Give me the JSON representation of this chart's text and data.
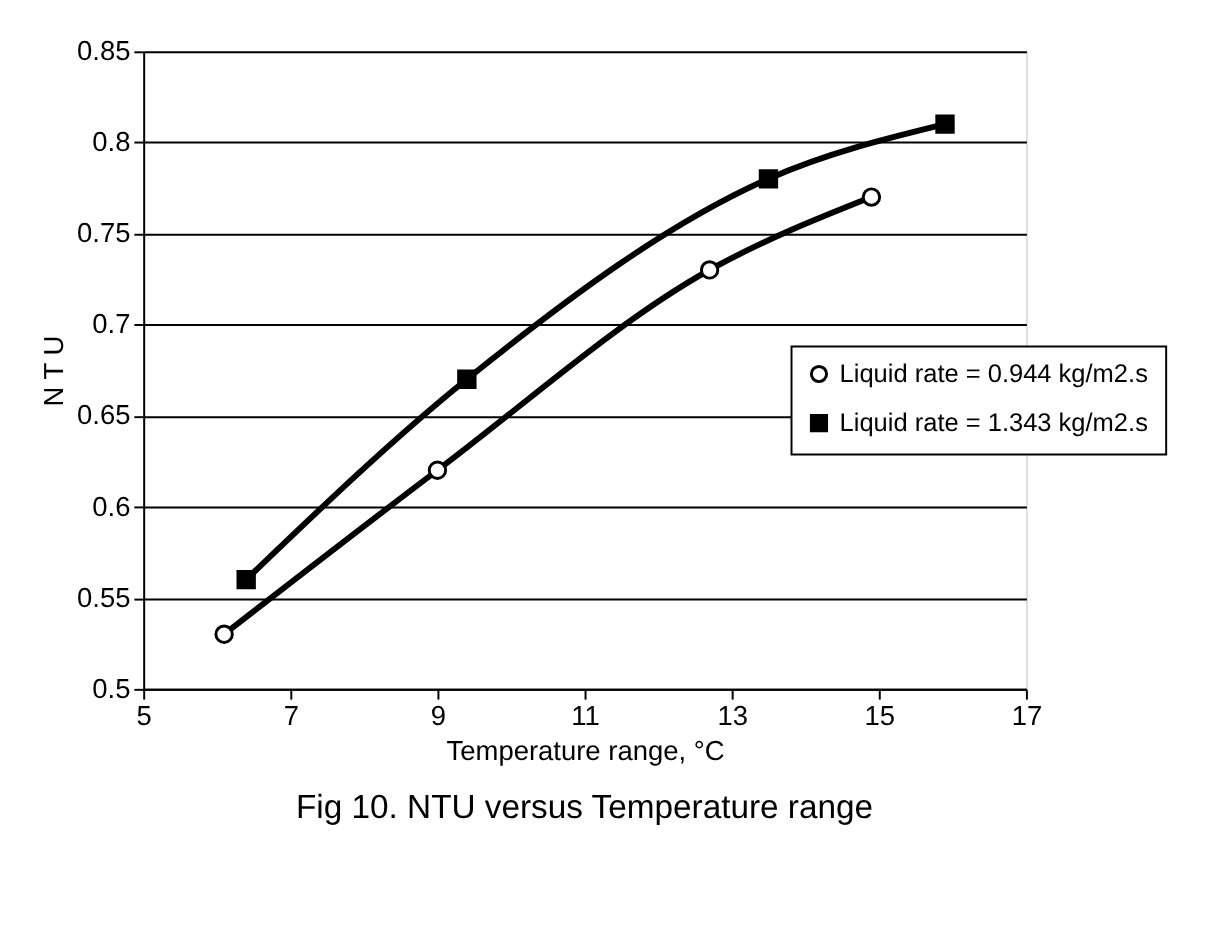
{
  "chart_data": {
    "type": "line",
    "title": "Fig 10. NTU versus Temperature range",
    "xlabel": "Temperature range, °C",
    "ylabel": "N T U",
    "xlim": [
      5,
      17
    ],
    "xticks": [
      5,
      7,
      9,
      11,
      13,
      15,
      17
    ],
    "ylim": [
      0.5,
      0.85
    ],
    "yticks": [
      0.5,
      0.55,
      0.6,
      0.65,
      0.7,
      0.75,
      0.8,
      0.85
    ],
    "grid": "y",
    "legend": "right",
    "line_style": "solid",
    "series": [
      {
        "name": "Liquid rate = 0.944 kg/m2.s",
        "color": "#000000",
        "marker": "circle",
        "x": [
          6.1,
          9.0,
          12.7,
          14.9
        ],
        "values": [
          0.53,
          0.62,
          0.73,
          0.77
        ]
      },
      {
        "name": "Liquid rate = 1.343 kg/m2.s",
        "color": "#000000",
        "marker": "square",
        "x": [
          6.4,
          9.4,
          13.5,
          15.9
        ],
        "values": [
          0.56,
          0.67,
          0.78,
          0.81
        ]
      }
    ]
  }
}
